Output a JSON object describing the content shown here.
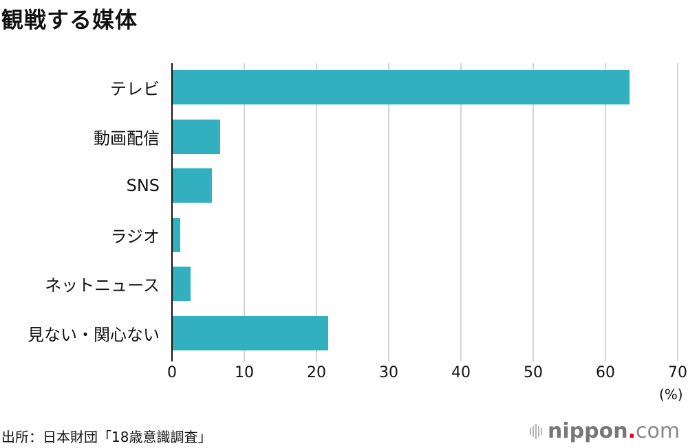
{
  "title": "観戦する媒体",
  "source": "出所：日本財団「18歳意識調査」",
  "logo": {
    "name": "nippon",
    "dot": ".",
    "tld": "com",
    "brand_color": "#e60012"
  },
  "unit": "(%)",
  "bar_color": "#33b0bf",
  "ticks": [
    "0",
    "10",
    "20",
    "30",
    "40",
    "50",
    "60",
    "70"
  ],
  "categories": [
    "テレビ",
    "動画配信",
    "SNS",
    "ラジオ",
    "ネットニュース",
    "見ない・関心ない"
  ],
  "chart_data": {
    "type": "bar",
    "orientation": "horizontal",
    "title": "観戦する媒体",
    "categories": [
      "テレビ",
      "動画配信",
      "SNS",
      "ラジオ",
      "ネットニュース",
      "見ない・関心ない"
    ],
    "values": [
      63.2,
      6.6,
      5.4,
      1.0,
      2.5,
      21.5
    ],
    "xlabel": "(%)",
    "ylabel": "",
    "xlim": [
      0,
      70
    ],
    "xticks": [
      0,
      10,
      20,
      30,
      40,
      50,
      60,
      70
    ],
    "grid": true,
    "legend": null,
    "source": "出所：日本財団「18歳意識調査」"
  }
}
